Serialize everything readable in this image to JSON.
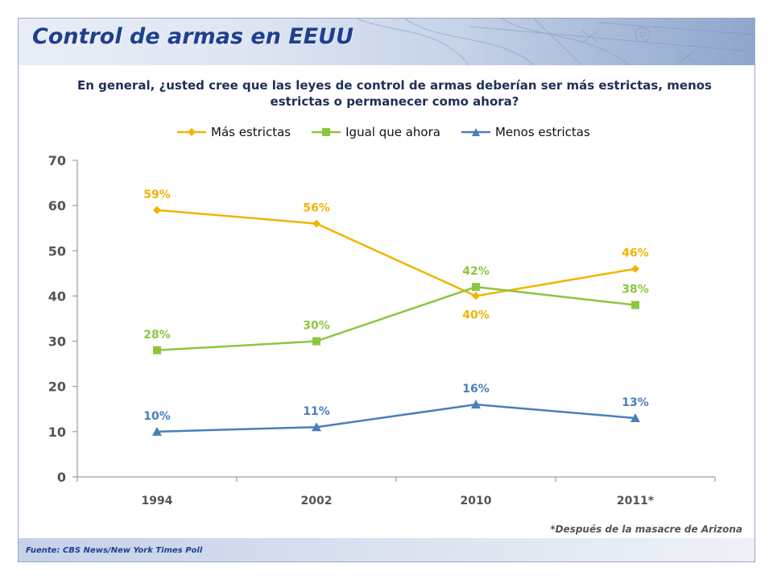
{
  "header": {
    "title": "Control de armas en EEUU"
  },
  "question": "En general, ¿usted cree que las leyes de control de armas deberían ser más estrictas, menos estrictas o permanecer como ahora?",
  "footnote": "*Después de la masacre de Arizona",
  "source": "Fuente: CBS News/New York Times Poll",
  "chart_data": {
    "type": "line",
    "title": "En general, ¿usted cree que las leyes de control de armas deberían ser más estrictas, menos estrictas o permanecer como ahora?",
    "categories": [
      "1994",
      "2002",
      "2010",
      "2011*"
    ],
    "ylim": [
      0,
      70
    ],
    "yticks": [
      0,
      10,
      20,
      30,
      40,
      50,
      60,
      70
    ],
    "grid": false,
    "legend_position": "top",
    "series": [
      {
        "name": "Más estrictas",
        "color": "#f2b400",
        "marker": "diamond",
        "values": [
          59,
          56,
          40,
          46
        ],
        "labels": [
          "59%",
          "56%",
          "40%",
          "46%"
        ],
        "label_side": [
          "above",
          "above",
          "below",
          "above"
        ]
      },
      {
        "name": "Igual que ahora",
        "color": "#8cc63f",
        "marker": "square",
        "values": [
          28,
          30,
          42,
          38
        ],
        "labels": [
          "28%",
          "30%",
          "42%",
          "38%"
        ],
        "label_side": [
          "above",
          "above",
          "above",
          "above"
        ]
      },
      {
        "name": "Menos estrictas",
        "color": "#4a7ebb",
        "marker": "triangle",
        "values": [
          10,
          11,
          16,
          13
        ],
        "labels": [
          "10%",
          "11%",
          "16%",
          "13%"
        ],
        "label_side": [
          "above",
          "above",
          "above",
          "above"
        ]
      }
    ]
  }
}
